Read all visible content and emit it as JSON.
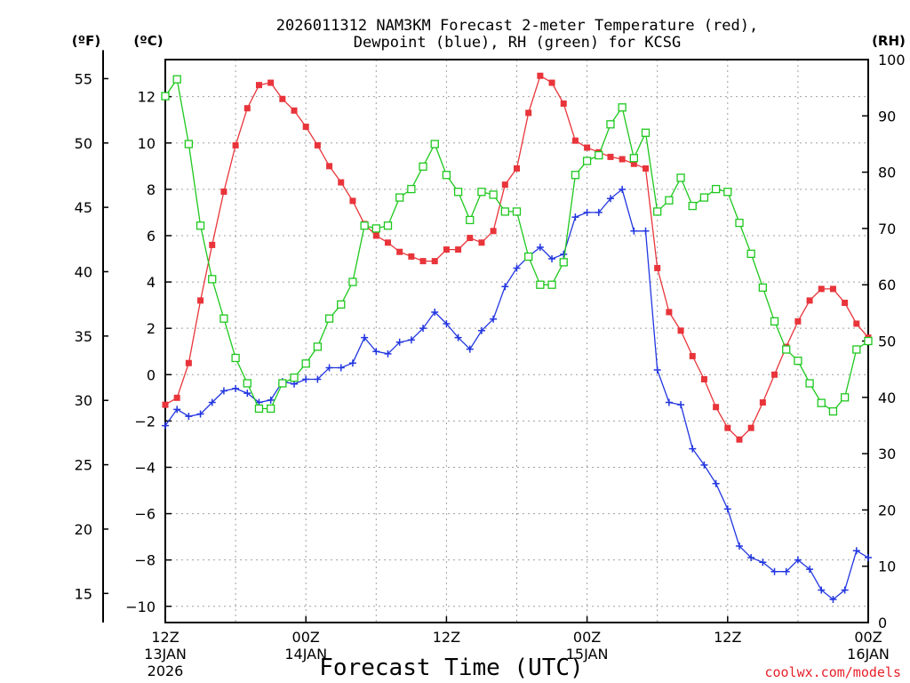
{
  "chart_data": {
    "type": "line",
    "title_line1": "2026011312 NAM3KM Forecast 2-meter Temperature (red),",
    "title_line2": "Dewpoint (blue), RH (green) for KCSG",
    "xlabel": "Forecast Time (UTC)",
    "credit": "coolwx.com/models",
    "unit_labels": {
      "fahrenheit": "(ºF)",
      "celsius": "(ºC)",
      "rh": "(RH)"
    },
    "x_range_hours": [
      0,
      60
    ],
    "x_ticks": [
      {
        "hour": 0,
        "lines": [
          "12Z",
          "13JAN",
          "2026"
        ]
      },
      {
        "hour": 12,
        "lines": [
          "00Z",
          "14JAN"
        ]
      },
      {
        "hour": 24,
        "lines": [
          "12Z"
        ]
      },
      {
        "hour": 36,
        "lines": [
          "00Z",
          "15JAN"
        ]
      },
      {
        "hour": 48,
        "lines": [
          "12Z"
        ]
      },
      {
        "hour": 60,
        "lines": [
          "00Z",
          "16JAN"
        ]
      }
    ],
    "y_celsius": {
      "min": -10.7,
      "max": 13.6,
      "ticks": [
        -10,
        -8,
        -6,
        -4,
        -2,
        0,
        2,
        4,
        6,
        8,
        10,
        12
      ],
      "tick_labels": [
        "−10",
        "−8",
        "−6",
        "−4",
        "−2",
        "0",
        "2",
        "4",
        "6",
        "8",
        "10",
        "12"
      ]
    },
    "y_fahrenheit": {
      "ticks": [
        15,
        20,
        25,
        30,
        35,
        40,
        45,
        50,
        55
      ]
    },
    "y_rh": {
      "min": 0,
      "max": 100,
      "ticks": [
        0,
        10,
        20,
        30,
        40,
        50,
        60,
        70,
        80,
        90,
        100
      ]
    },
    "series": [
      {
        "name": "2-meter Temperature",
        "color": "#e8343a",
        "marker": "filled-square",
        "axis": "celsius",
        "x": [
          0,
          1,
          2,
          3,
          4,
          5,
          6,
          7,
          8,
          9,
          10,
          11,
          12,
          13,
          14,
          15,
          16,
          17,
          18,
          19,
          20,
          21,
          22,
          23,
          24,
          25,
          26,
          27,
          28,
          29,
          30,
          31,
          32,
          33,
          34,
          35,
          36,
          37,
          38,
          39,
          40,
          41,
          42,
          43,
          44,
          45,
          46,
          47,
          48,
          49,
          50,
          51,
          52,
          53,
          54,
          55,
          56,
          57,
          58,
          59,
          60
        ],
        "values": [
          -1.3,
          -1.0,
          0.5,
          3.2,
          5.6,
          7.9,
          9.9,
          11.5,
          12.5,
          12.6,
          11.9,
          11.4,
          10.7,
          9.9,
          9.0,
          8.3,
          7.5,
          6.5,
          6.0,
          5.7,
          5.3,
          5.1,
          4.9,
          4.9,
          5.4,
          5.4,
          5.9,
          5.7,
          6.2,
          8.2,
          8.9,
          11.3,
          12.9,
          12.6,
          11.7,
          10.1,
          9.8,
          9.6,
          9.4,
          9.3,
          9.1,
          8.9,
          4.6,
          2.7,
          1.9,
          0.8,
          -0.2,
          -1.4,
          -2.3,
          -2.8,
          -2.3,
          -1.2,
          0.0,
          1.2,
          2.3,
          3.2,
          3.7,
          3.7,
          3.1,
          2.2,
          1.6
        ]
      },
      {
        "name": "Dewpoint",
        "color": "#2236e0",
        "marker": "plus",
        "axis": "celsius",
        "x": [
          0,
          1,
          2,
          3,
          4,
          5,
          6,
          7,
          8,
          9,
          10,
          11,
          12,
          13,
          14,
          15,
          16,
          17,
          18,
          19,
          20,
          21,
          22,
          23,
          24,
          25,
          26,
          27,
          28,
          29,
          30,
          31,
          32,
          33,
          34,
          35,
          36,
          37,
          38,
          39,
          40,
          41,
          42,
          43,
          44,
          45,
          46,
          47,
          48,
          49,
          50,
          51,
          52,
          53,
          54,
          55,
          56,
          57,
          58,
          59,
          60
        ],
        "values": [
          -2.2,
          -1.5,
          -1.8,
          -1.7,
          -1.2,
          -0.7,
          -0.6,
          -0.8,
          -1.2,
          -1.1,
          -0.3,
          -0.4,
          -0.2,
          -0.2,
          0.3,
          0.3,
          0.5,
          1.6,
          1.0,
          0.9,
          1.4,
          1.5,
          2.0,
          2.7,
          2.2,
          1.6,
          1.1,
          1.9,
          2.4,
          3.8,
          4.6,
          5.1,
          5.5,
          5.0,
          5.2,
          6.8,
          7.0,
          7.0,
          7.6,
          8.0,
          6.2,
          6.2,
          0.2,
          -1.2,
          -1.3,
          -3.2,
          -3.9,
          -4.7,
          -5.8,
          -7.4,
          -7.9,
          -8.1,
          -8.5,
          -8.5,
          -8.0,
          -8.4,
          -9.3,
          -9.7,
          -9.3,
          -7.6,
          -7.9
        ]
      },
      {
        "name": "RH",
        "color": "#1ec81e",
        "marker": "open-square",
        "axis": "rh",
        "x": [
          0,
          1,
          2,
          3,
          4,
          5,
          6,
          7,
          8,
          9,
          10,
          11,
          12,
          13,
          14,
          15,
          16,
          17,
          18,
          19,
          20,
          21,
          22,
          23,
          24,
          25,
          26,
          27,
          28,
          29,
          30,
          31,
          32,
          33,
          34,
          35,
          36,
          37,
          38,
          39,
          40,
          41,
          42,
          43,
          44,
          45,
          46,
          47,
          48,
          49,
          50,
          51,
          52,
          53,
          54,
          55,
          56,
          57,
          58,
          59,
          60
        ],
        "values": [
          93.5,
          96.5,
          85.0,
          70.5,
          61.0,
          54.0,
          47.0,
          42.5,
          38.0,
          38.0,
          42.5,
          43.5,
          46.0,
          49.0,
          54.0,
          56.5,
          60.5,
          70.5,
          70.0,
          70.5,
          75.5,
          77.0,
          81.0,
          85.0,
          79.5,
          76.5,
          71.5,
          76.5,
          76.0,
          73.0,
          73.0,
          65.0,
          60.0,
          60.0,
          64.0,
          79.5,
          82.0,
          83.0,
          88.5,
          91.5,
          82.5,
          87.0,
          73.0,
          75.0,
          79.0,
          74.0,
          75.5,
          77.0,
          76.5,
          71.0,
          65.5,
          59.5,
          53.5,
          48.5,
          46.5,
          42.5,
          39.0,
          37.5,
          40.0,
          48.5,
          50.0
        ]
      }
    ]
  }
}
